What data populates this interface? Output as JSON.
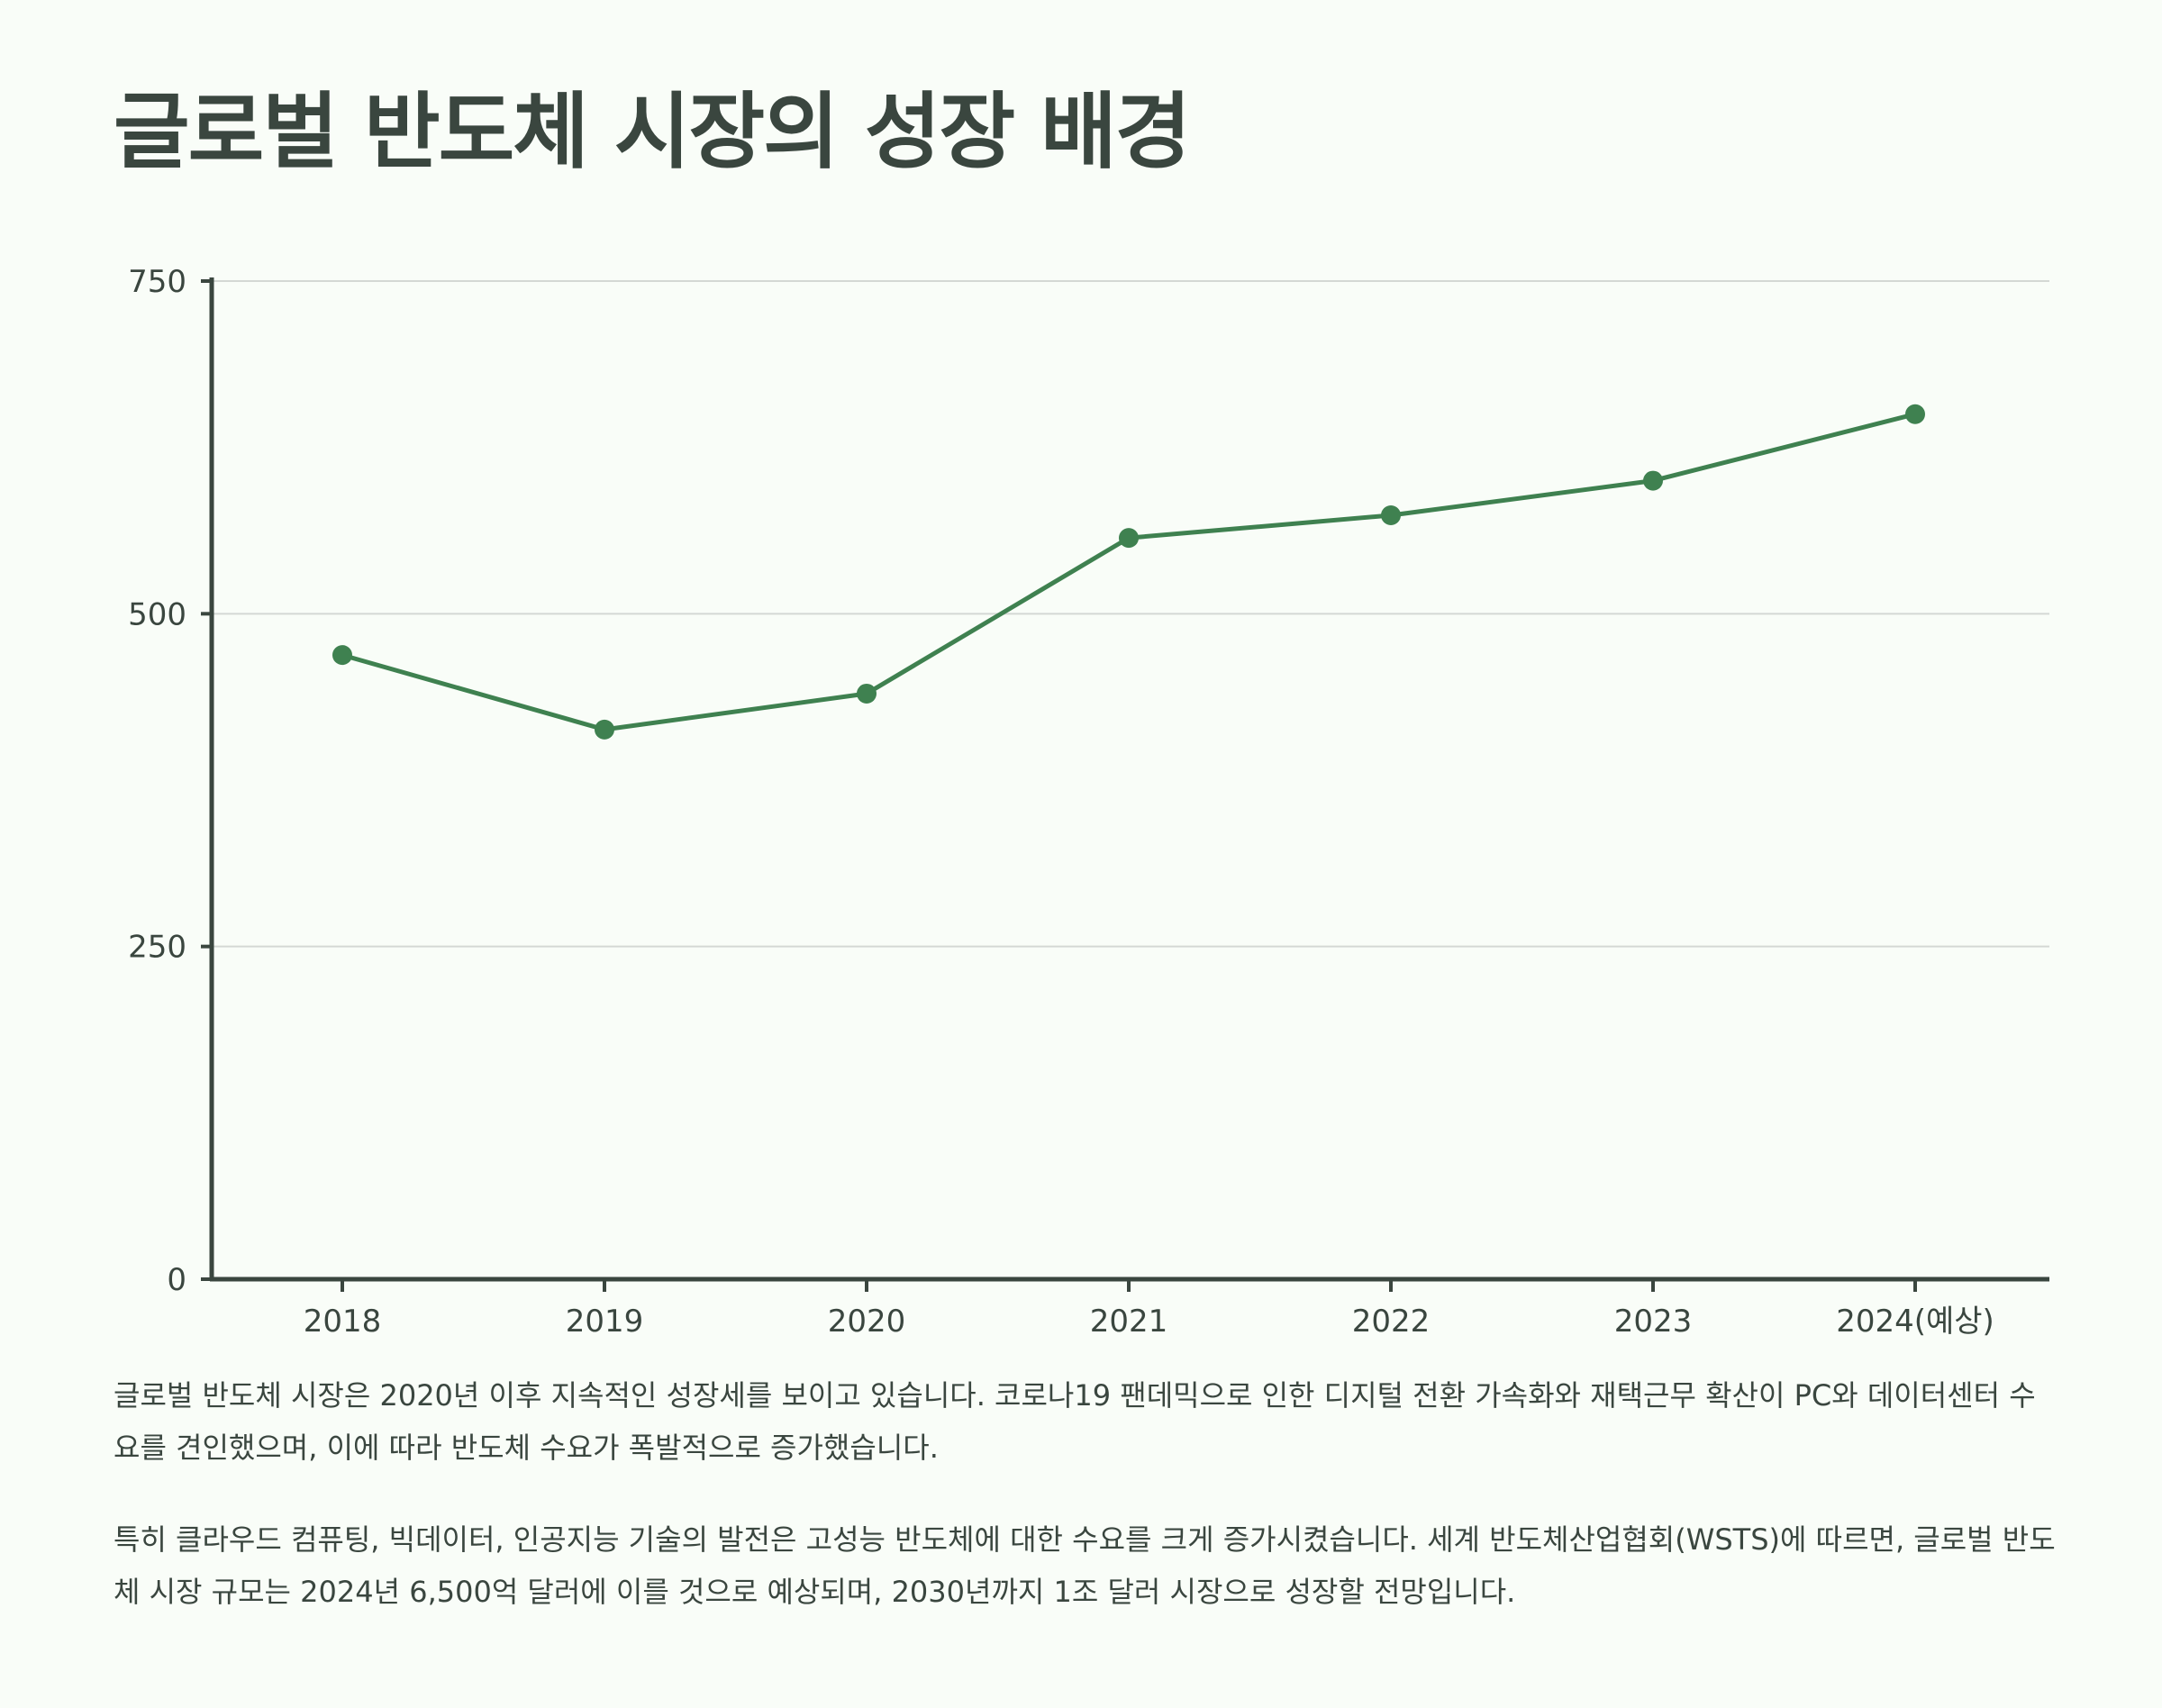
{
  "title": "글로벌 반도체 시장의 성장 배경",
  "chart_data": {
    "type": "line",
    "categories": [
      "2018",
      "2019",
      "2020",
      "2021",
      "2022",
      "2023",
      "2024(예상)"
    ],
    "series": [
      {
        "name": "글로벌 반도체 시장 규모",
        "values": [
          469,
          413,
          440,
          557,
          574,
          600,
          650
        ]
      }
    ],
    "ylim": [
      0,
      750
    ],
    "yticks": [
      0,
      250,
      500,
      750
    ],
    "grid": true,
    "xlabel": "",
    "ylabel": "",
    "colors": {
      "line": "#3f8150",
      "axis": "#3a463f",
      "grid": "#d4d8d4"
    }
  },
  "paragraphs": [
    "글로벌 반도체 시장은 2020년 이후 지속적인 성장세를 보이고 있습니다. 코로나19 팬데믹으로 인한 디지털 전환 가속화와 재택근무 확산이 PC와 데이터센터 수요를 견인했으며, 이에 따라 반도체 수요가 폭발적으로 증가했습니다.",
    "특히 클라우드 컴퓨팅, 빅데이터, 인공지능 기술의 발전은 고성능 반도체에 대한 수요를 크게 증가시켰습니다. 세계 반도체산업협회(WSTS)에 따르면, 글로벌 반도체 시장 규모는 2024년 6,500억 달러에 이를 것으로 예상되며, 2030년까지 1조 달러 시장으로 성장할 전망입니다."
  ]
}
